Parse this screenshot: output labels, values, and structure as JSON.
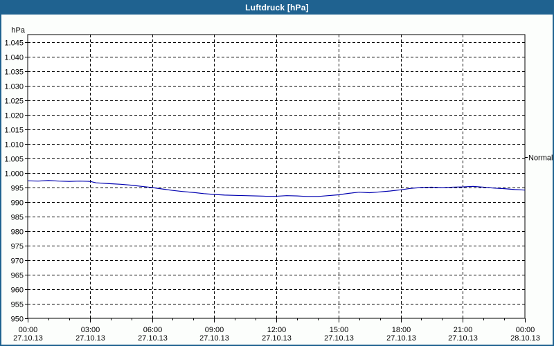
{
  "window": {
    "title": "Luftdruck [hPa]"
  },
  "colors": {
    "titlebar": "#1f6290",
    "border": "#1f6290",
    "background": "#fcfefc",
    "plot_bg": "#ffffff",
    "grid": "#000000",
    "text": "#000000",
    "line": "#0000b0"
  },
  "chart_data": {
    "type": "line",
    "title": "Luftdruck [hPa]",
    "y_unit_label": "hPa",
    "xlabel": "",
    "ylabel": "hPa",
    "ylim": [
      950,
      1047.6
    ],
    "xlim_hours": [
      0,
      24
    ],
    "grid": "dashed",
    "legend_position": "none",
    "y_ticks": [
      {
        "value": 1045,
        "label": "1.045"
      },
      {
        "value": 1040,
        "label": "1.040"
      },
      {
        "value": 1035,
        "label": "1.035"
      },
      {
        "value": 1030,
        "label": "1.030"
      },
      {
        "value": 1025,
        "label": "1.025"
      },
      {
        "value": 1020,
        "label": "1.020"
      },
      {
        "value": 1015,
        "label": "1.015"
      },
      {
        "value": 1010,
        "label": "1.010"
      },
      {
        "value": 1005,
        "label": "1.005"
      },
      {
        "value": 1000,
        "label": "1.000"
      },
      {
        "value": 995,
        "label": "995"
      },
      {
        "value": 990,
        "label": "990"
      },
      {
        "value": 985,
        "label": "985"
      },
      {
        "value": 980,
        "label": "980"
      },
      {
        "value": 975,
        "label": "975"
      },
      {
        "value": 970,
        "label": "970"
      },
      {
        "value": 965,
        "label": "965"
      },
      {
        "value": 960,
        "label": "960"
      },
      {
        "value": 955,
        "label": "955"
      },
      {
        "value": 950,
        "label": "950"
      }
    ],
    "x_ticks": [
      {
        "hour": 0,
        "time": "00:00",
        "date": "27.10.13"
      },
      {
        "hour": 3,
        "time": "03:00",
        "date": "27.10.13"
      },
      {
        "hour": 6,
        "time": "06:00",
        "date": "27.10.13"
      },
      {
        "hour": 9,
        "time": "09:00",
        "date": "27.10.13"
      },
      {
        "hour": 12,
        "time": "12:00",
        "date": "27.10.13"
      },
      {
        "hour": 15,
        "time": "15:00",
        "date": "27.10.13"
      },
      {
        "hour": 18,
        "time": "18:00",
        "date": "27.10.13"
      },
      {
        "hour": 21,
        "time": "21:00",
        "date": "27.10.13"
      },
      {
        "hour": 24,
        "time": "00:00",
        "date": "28.10.13"
      }
    ],
    "x_minor_tick_every_hours": 1,
    "annotations": [
      {
        "label": "Normal",
        "value": 1005.5,
        "side": "right"
      }
    ],
    "series": [
      {
        "name": "Luftdruck",
        "color": "#0000b0",
        "points": [
          [
            0,
            997.3
          ],
          [
            0.5,
            997.2
          ],
          [
            1,
            997.4
          ],
          [
            1.5,
            997.2
          ],
          [
            2,
            997.1
          ],
          [
            2.5,
            997.2
          ],
          [
            3,
            997.1
          ],
          [
            3.3,
            996.6
          ],
          [
            4,
            996.3
          ],
          [
            4.5,
            996.1
          ],
          [
            5,
            995.8
          ],
          [
            5.5,
            995.4
          ],
          [
            6,
            995.0
          ],
          [
            6.5,
            994.5
          ],
          [
            7,
            994.0
          ],
          [
            7.5,
            993.6
          ],
          [
            8,
            993.3
          ],
          [
            8.5,
            992.9
          ],
          [
            9,
            992.6
          ],
          [
            9.5,
            992.4
          ],
          [
            10,
            992.3
          ],
          [
            10.5,
            992.2
          ],
          [
            11,
            992.1
          ],
          [
            11.5,
            992.0
          ],
          [
            12,
            992.0
          ],
          [
            12.5,
            992.2
          ],
          [
            13,
            992.1
          ],
          [
            13.5,
            991.9
          ],
          [
            14,
            991.9
          ],
          [
            14.5,
            992.2
          ],
          [
            15,
            992.5
          ],
          [
            15.5,
            993.0
          ],
          [
            16,
            993.4
          ],
          [
            16.5,
            993.2
          ],
          [
            17,
            993.5
          ],
          [
            17.5,
            993.8
          ],
          [
            18,
            994.2
          ],
          [
            18.5,
            994.7
          ],
          [
            19,
            995.0
          ],
          [
            19.5,
            995.1
          ],
          [
            20,
            994.9
          ],
          [
            20.5,
            995.1
          ],
          [
            21,
            995.2
          ],
          [
            21.5,
            995.4
          ],
          [
            22,
            995.1
          ],
          [
            22.5,
            994.8
          ],
          [
            23,
            994.6
          ],
          [
            23.5,
            994.3
          ],
          [
            24,
            994.1
          ]
        ]
      }
    ]
  }
}
